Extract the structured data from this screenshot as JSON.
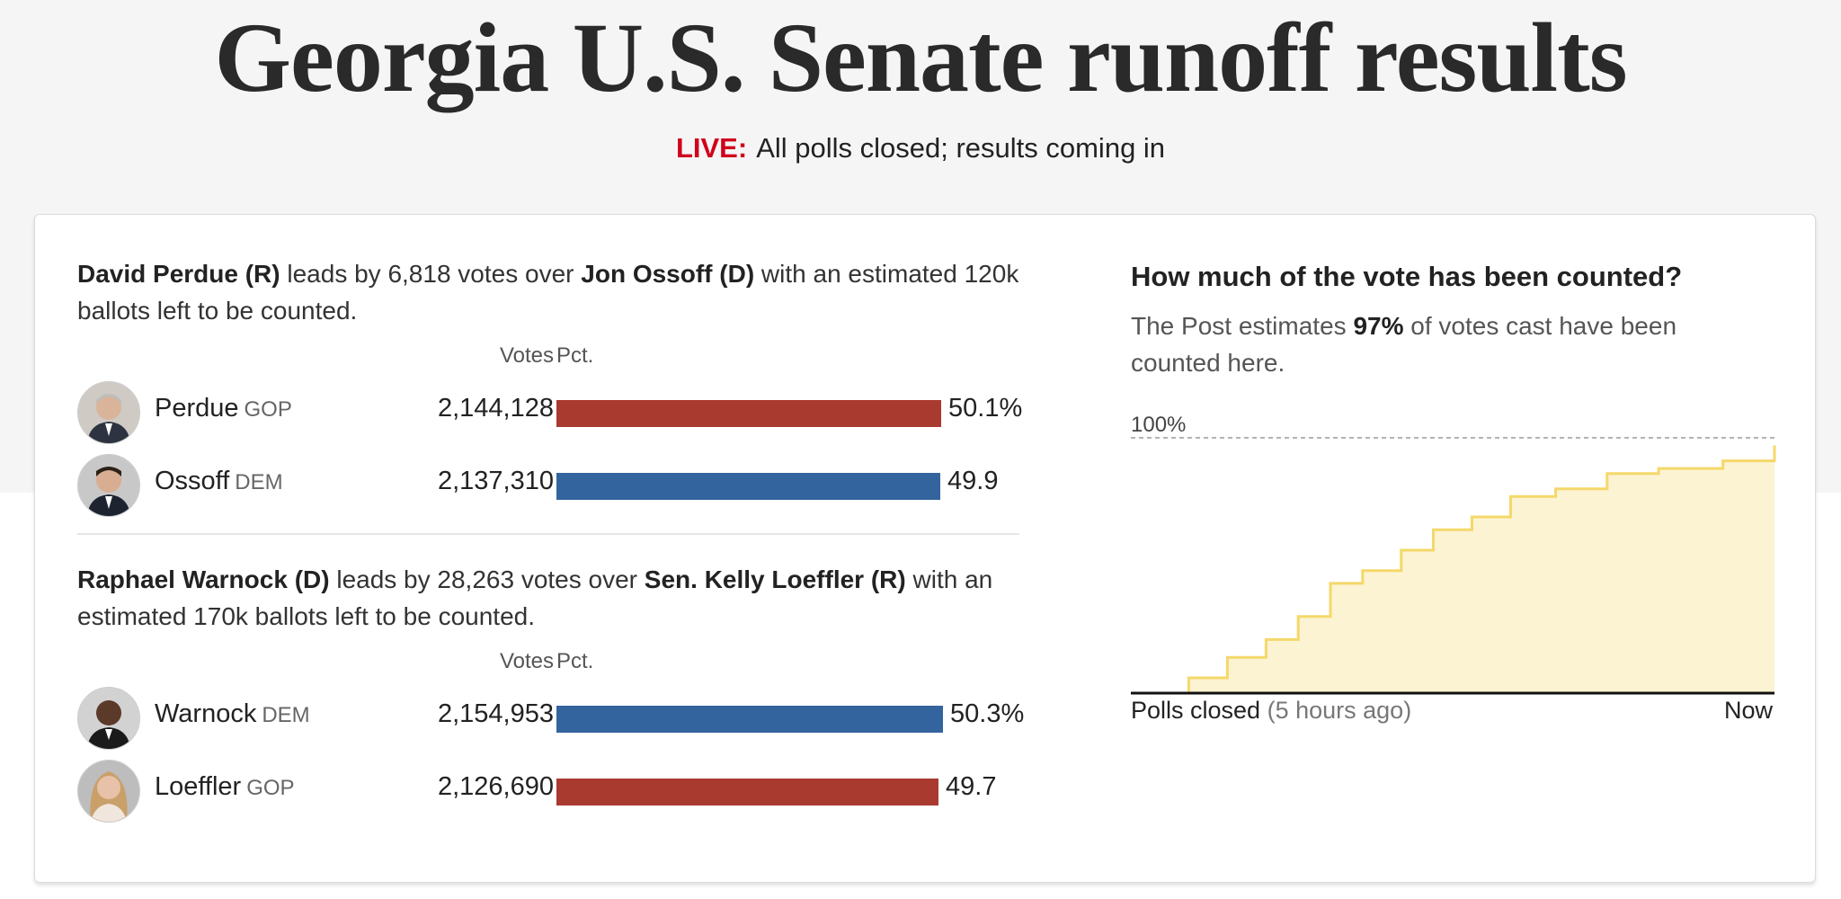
{
  "page": {
    "title": "Georgia U.S. Senate runoff results",
    "live_label": "LIVE:",
    "status": "All polls closed; results coming in"
  },
  "colors": {
    "gop": "#a83a30",
    "dem": "#34649e",
    "live": "#d0021b",
    "progress_line": "#f5d86a",
    "progress_fill": "#fcf3d2"
  },
  "races": [
    {
      "summary": {
        "leader": "David Perdue (R)",
        "mid": " leads by 6,818 votes over ",
        "trailer": "Jon Ossoff (D)",
        "tail": " with an estimated 120k ballots left to be counted."
      },
      "headers": {
        "votes": "Votes",
        "pct": "Pct."
      },
      "candidates": [
        {
          "name": "Perdue",
          "party": "GOP",
          "votes": "2,144,128",
          "pct": "50.1%",
          "share": 50.1,
          "icon": "perdue-avatar-icon"
        },
        {
          "name": "Ossoff",
          "party": "DEM",
          "votes": "2,137,310",
          "pct": "49.9",
          "share": 49.9,
          "icon": "ossoff-avatar-icon"
        }
      ]
    },
    {
      "summary": {
        "leader": "Raphael Warnock (D)",
        "mid": " leads by 28,263 votes over ",
        "trailer": "Sen. Kelly Loeffler (R)",
        "tail": " with an estimated 170k ballots left to be counted."
      },
      "headers": {
        "votes": "Votes",
        "pct": "Pct."
      },
      "candidates": [
        {
          "name": "Warnock",
          "party": "DEM",
          "votes": "2,154,953",
          "pct": "50.3%",
          "share": 50.3,
          "icon": "warnock-avatar-icon"
        },
        {
          "name": "Loeffler",
          "party": "GOP",
          "votes": "2,126,690",
          "pct": "49.7",
          "share": 49.7,
          "icon": "loeffler-avatar-icon"
        }
      ]
    }
  ],
  "counted": {
    "title": "How much of the vote has been counted?",
    "text_pre": "The Post estimates ",
    "text_pct": "97%",
    "text_post": " of votes cast have been counted here."
  },
  "chart_data": {
    "type": "area",
    "y_max_label": "100%",
    "x_start_label": "Polls closed",
    "x_start_note": "(5 hours ago)",
    "x_end_label": "Now",
    "ylim": [
      0,
      100
    ],
    "step": true,
    "x": [
      0,
      0.09,
      0.15,
      0.21,
      0.26,
      0.31,
      0.36,
      0.42,
      0.47,
      0.53,
      0.59,
      0.66,
      0.74,
      0.82,
      0.92,
      1.0
    ],
    "values": [
      0,
      6,
      14,
      21,
      30,
      43,
      48,
      56,
      64,
      69,
      77,
      80,
      86,
      88,
      91,
      97
    ]
  }
}
